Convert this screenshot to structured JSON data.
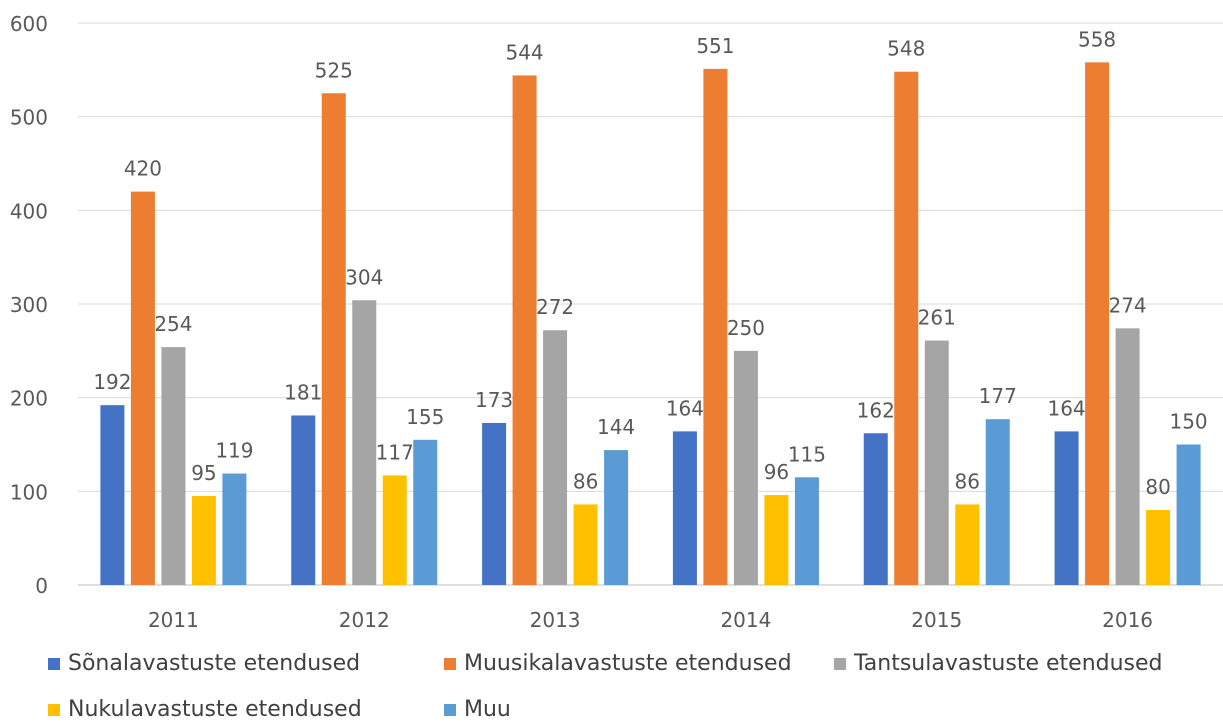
{
  "chart_data": {
    "type": "bar",
    "categories": [
      "2011",
      "2012",
      "2013",
      "2014",
      "2015",
      "2016"
    ],
    "series": [
      {
        "name": "Sõnalavastuste etendused",
        "color": "#4472C4",
        "values": [
          192,
          181,
          173,
          164,
          162,
          164
        ]
      },
      {
        "name": "Muusikalavastuste etendused",
        "color": "#ED7D31",
        "values": [
          420,
          525,
          544,
          551,
          548,
          558
        ]
      },
      {
        "name": "Tantsulavastuste etendused",
        "color": "#A5A5A5",
        "values": [
          254,
          304,
          272,
          250,
          261,
          274
        ]
      },
      {
        "name": "Nukulavastuste etendused",
        "color": "#FFC000",
        "values": [
          95,
          117,
          86,
          96,
          86,
          80
        ]
      },
      {
        "name": "Muu",
        "color": "#5B9BD5",
        "values": [
          119,
          155,
          144,
          115,
          177,
          150
        ]
      }
    ],
    "y_ticks": [
      "0",
      "100",
      "200",
      "300",
      "400",
      "500",
      "600"
    ],
    "ylim": [
      0,
      600
    ],
    "grid": true,
    "legend_position": "bottom"
  }
}
